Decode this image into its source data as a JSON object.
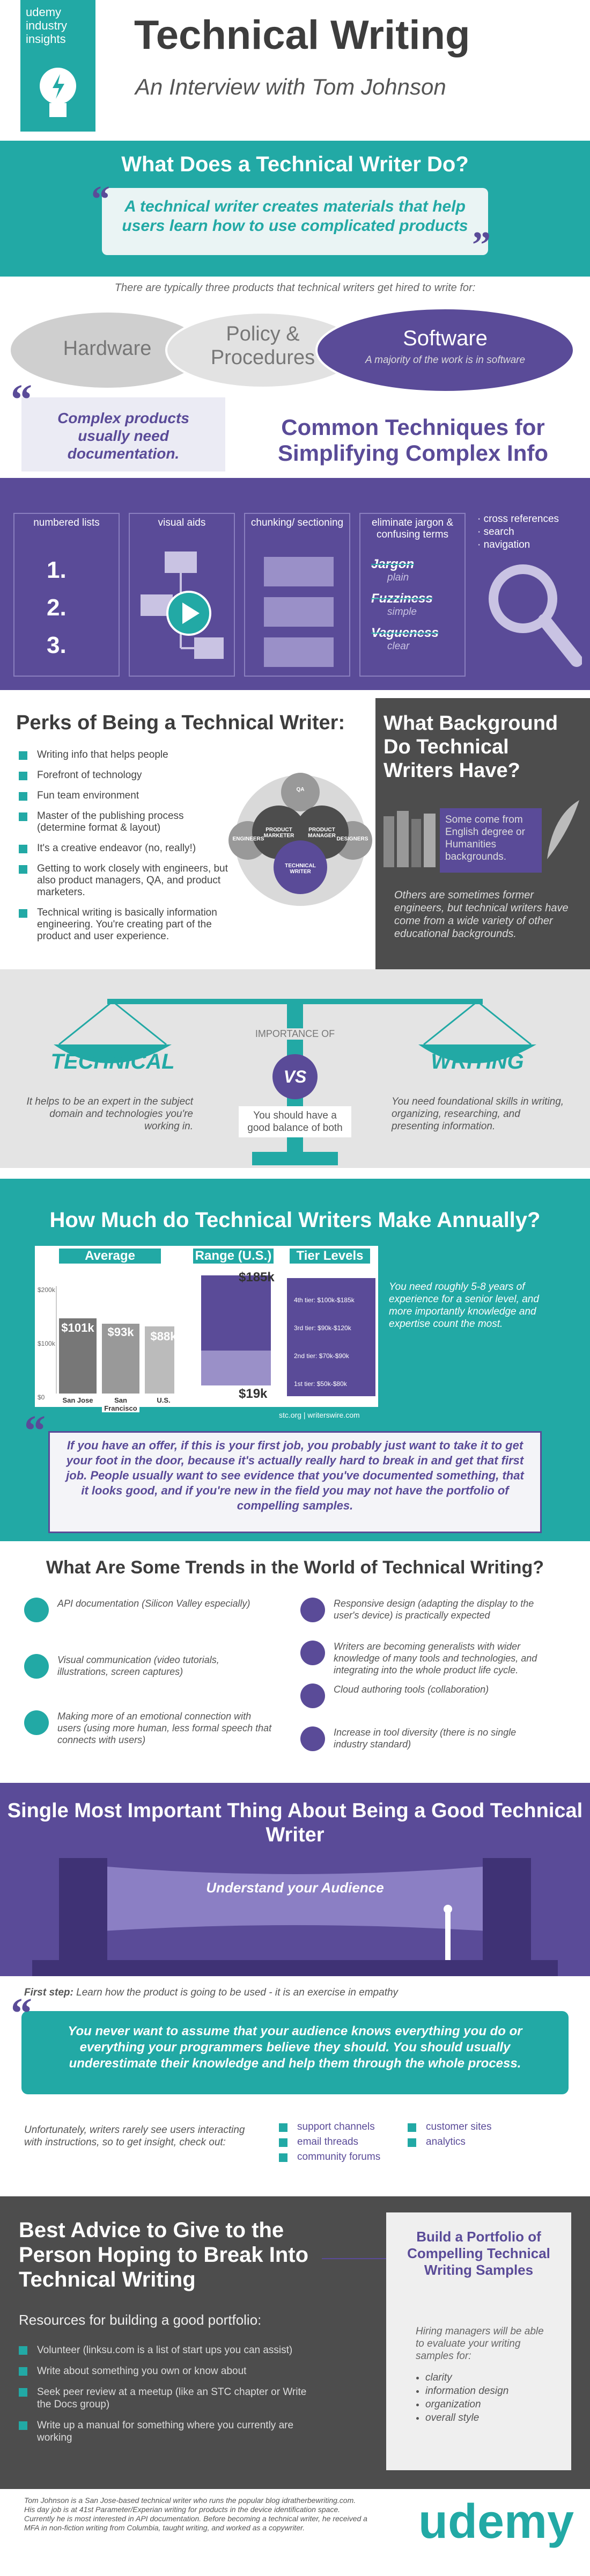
{
  "header": {
    "brand": "udemy industry insights",
    "title": "Technical Writing",
    "subtitle": "An Interview with Tom Johnson"
  },
  "role": {
    "heading": "What Does a Technical Writer Do?",
    "quote": "A technical writer creates materials that help users learn how to use complicated products",
    "intro": "There are typically three products that technical writers get hired to write for:",
    "products": [
      "Hardware",
      "Policy & Procedures",
      "Software"
    ],
    "software_note": "A majority of the work is in software"
  },
  "techniques": {
    "quote": "Complex products usually need documentation.",
    "heading": "Common Techniques for Simplifying Complex Info",
    "columns": [
      "numbered lists",
      "visual aids",
      "chunking/ sectioning",
      "eliminate jargon & confusing terms"
    ],
    "numbers": [
      "1.",
      "2.",
      "3."
    ],
    "jargon": [
      {
        "term": "Jargon",
        "replacement": "plain"
      },
      {
        "term": "Fuzziness",
        "replacement": "simple"
      },
      {
        "term": "Vagueness",
        "replacement": "clear"
      }
    ],
    "navigation": [
      "· cross references",
      "· search",
      "· navigation"
    ]
  },
  "perks": {
    "heading": "Perks of Being a Technical Writer:",
    "items": [
      "Writing info that helps people",
      "Forefront of technology",
      "Fun team environment",
      "Master of the publishing process (determine format & layout)",
      "It's a creative endeavor (no, really!)",
      "Getting to work closely with engineers, but also product managers, QA, and product marketers.",
      "Technical writing is basically information engineering. You're creating part of the product and user experience."
    ],
    "roles": [
      "QA",
      "ENGINEERS",
      "DESIGNERS",
      "PRODUCT MARKETER",
      "PRODUCT MANAGER",
      "TECHNICAL WRITER"
    ]
  },
  "background": {
    "heading": "What Background Do Technical Writers Have?",
    "note": "Some come from English degree or Humanities backgrounds.",
    "text": "Others are sometimes former engineers, but technical writers have come from a wide variety of other educational backgrounds."
  },
  "balance": {
    "label": "IMPORTANCE OF",
    "left": "TECHNICAL",
    "vs": "VS",
    "right": "WRITING",
    "left_text": "It helps to be an expert in the subject domain and technologies you're working in.",
    "middle_text": "You should have a good balance of both",
    "right_text": "You need foundational skills in writing, organizing, researching, and presenting information."
  },
  "salary": {
    "heading": "How Much do Technical Writers Make Annually?",
    "columns": [
      "Average",
      "Range (U.S.)",
      "Tier Levels"
    ],
    "axis": [
      "$200k",
      "$100k",
      "$0"
    ],
    "averages": [
      {
        "place": "San Jose",
        "amount": "$101k"
      },
      {
        "place": "San Francisco",
        "amount": "$93k"
      },
      {
        "place": "U.S.",
        "amount": "$88k"
      }
    ],
    "range": [
      "$185k",
      "$19k"
    ],
    "tiers": [
      "4th tier: $100k-$185k",
      "3rd tier: $90k-$120k",
      "2nd tier: $70k-$90k",
      "1st tier: $50k-$80k"
    ],
    "note": "You need roughly 5-8 years of experience for a senior level, and more importantly knowledge and expertise count the most.",
    "source": "stc.org | writerswire.com",
    "quote": "If you have an offer, if this is your first job, you probably just want to take it to get your foot in the door, because it's actually really hard to break in and get that first job. People usually want to see evidence that you've documented something, that it looks good, and if you're new in the field you may not have the portfolio of compelling samples."
  },
  "trends": {
    "heading": "What Are Some Trends in the World of Technical Writing?",
    "left": [
      "API documentation (Silicon Valley especially)",
      "Visual communication (video tutorials, illustrations, screen captures)",
      "Making more of an emotional connection with users (using more human, less formal speech that connects with users)"
    ],
    "right": [
      "Responsive design (adapting the display to the user's device) is practically expected",
      "Writers are becoming generalists with wider knowledge of many tools and technologies, and integrating into the whole product life cycle.",
      "Cloud authoring tools (collaboration)",
      "Increase in tool diversity (there is no single industry standard)"
    ]
  },
  "audience": {
    "heading": "Single Most Important Thing About Being a Good Technical Writer",
    "banner": "Understand your Audience",
    "first_label": "First step:",
    "first_text": "Learn how the product is going to be used - it is an exercise in empathy",
    "quote": "You never want to assume that your audience knows everything you do or everything your programmers believe they should. You should usually underestimate their knowledge and help them through the whole process.",
    "insight": "Unfortunately, writers rarely see users interacting with instructions, so to get insight, check out:",
    "sources_a": [
      "support channels",
      "email threads",
      "community forums"
    ],
    "sources_b": [
      "customer sites",
      "analytics"
    ]
  },
  "advice": {
    "heading": "Best Advice to Give to the Person Hoping to Break Into Technical Writing",
    "resources_heading": "Resources for building a good portfolio:",
    "resources": [
      "Volunteer (linksu.com is a list of start ups you can assist)",
      "Write about something you own or know about",
      "Seek peer review at a meetup (like an STC chapter or Write the Docs group)",
      "Write up a manual for something where you currently are working"
    ],
    "box_heading": "Build a Portfolio of Compelling Technical Writing Samples",
    "box_text": "Hiring managers will be able to evaluate your writing samples for:",
    "criteria": [
      "clarity",
      "information design",
      "organization",
      "overall style"
    ]
  },
  "footer": {
    "bio": "Tom Johnson is a San Jose-based technical writer who runs the popular blog idratherbewriting.com. His day job is at 41st Parameter/Experian writing for products in the device identification space. Currently he is most interested in API documentation. Before becoming a technical writer, he received a MFA in non-fiction writing from Columbia, taught writing, and worked as a copywriter.",
    "logo": "udemy"
  }
}
